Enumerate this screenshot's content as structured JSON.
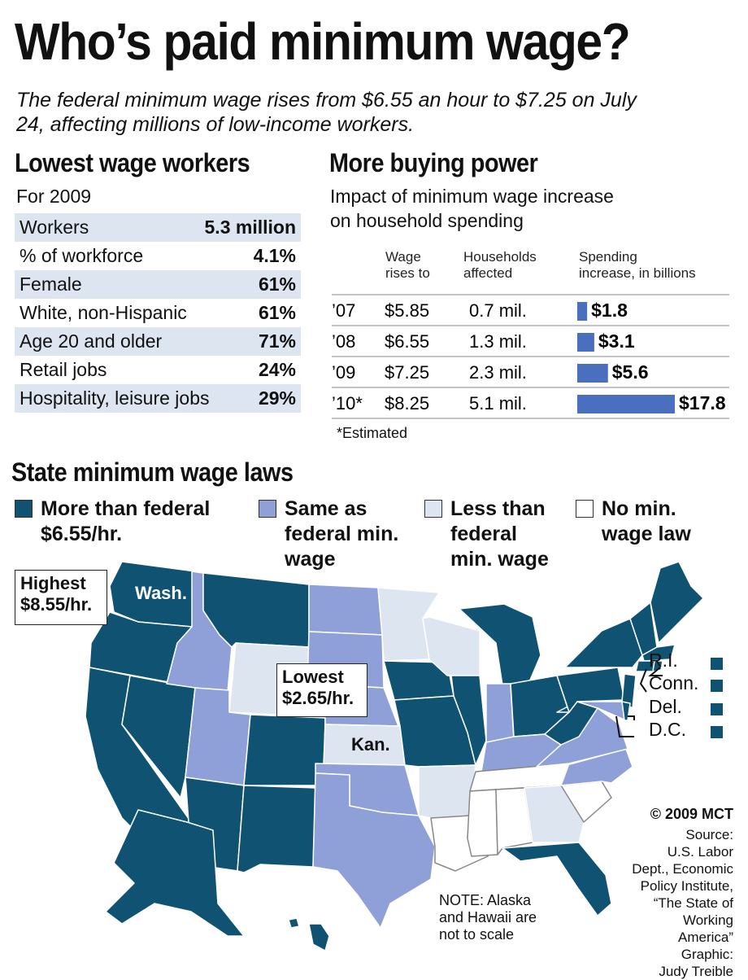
{
  "title": "Who’s paid minimum wage?",
  "subtitle": "The federal minimum wage rises from $6.55 an hour to $7.25 on July 24, affecting millions of low-income workers.",
  "lowest_wage": {
    "heading": "Lowest wage workers",
    "subheading": "For 2009",
    "rows": [
      {
        "label": "Workers",
        "value": "5.3 million"
      },
      {
        "label": "% of workforce",
        "value": "4.1%"
      },
      {
        "label": "Female",
        "value": "61%"
      },
      {
        "label": "White, non-Hispanic",
        "value": "61%"
      },
      {
        "label": "Age 20 and older",
        "value": "71%"
      },
      {
        "label": "Retail jobs",
        "value": "24%"
      },
      {
        "label": "Hospitality, leisure jobs",
        "value": "29%"
      }
    ]
  },
  "buying_power": {
    "heading": "More buying power",
    "subheading_line1": "Impact of minimum wage increase",
    "subheading_line2": "on household spending",
    "col_wage_1": "Wage",
    "col_wage_2": "rises to",
    "col_house_1": "Households",
    "col_house_2": "affected",
    "col_spend_1": "Spending",
    "col_spend_2": "increase, in billions",
    "footnote": "*Estimated"
  },
  "chart_data": {
    "type": "bar",
    "orientation": "horizontal",
    "categories": [
      "’07",
      "’08",
      "’09",
      "’10*"
    ],
    "wage": [
      "$5.85",
      "$6.55",
      "$7.25",
      "$8.25"
    ],
    "households": [
      "0.7 mil.",
      "1.3 mil.",
      "2.3 mil.",
      "5.1 mil."
    ],
    "values": [
      1.8,
      3.1,
      5.6,
      17.8
    ],
    "value_labels": [
      "$1.8",
      "$3.1",
      "$5.6",
      "$17.8"
    ],
    "xlim": [
      0,
      17.8
    ],
    "bar_color": "#4a6fbf"
  },
  "map": {
    "heading": "State minimum wage laws",
    "legend": [
      {
        "line1": "More than federal",
        "line2": "$6.55/hr.",
        "line3": "",
        "color": "#0f5272"
      },
      {
        "line1": "Same as",
        "line2": "federal min.",
        "line3": "wage",
        "color": "#8fa0d8"
      },
      {
        "line1": "Less than",
        "line2": "federal",
        "line3": "min. wage",
        "color": "#dde5f1"
      },
      {
        "line1": "No min.",
        "line2": "wage law",
        "line3": "",
        "color": "#ffffff"
      }
    ],
    "highest_1": "Highest",
    "highest_2": "$8.55/hr.",
    "highest_state": "Wash.",
    "lowest_1": "Lowest",
    "lowest_2": "$2.65/hr.",
    "lowest_state": "Kan.",
    "small_states": [
      "R.I.",
      "Conn.",
      "Del.",
      "D.C."
    ],
    "note_1": "NOTE: Alaska",
    "note_2": "and Hawaii are",
    "note_3": "not to scale"
  },
  "credits": {
    "copyright": "© 2009 MCT",
    "source_lines": [
      "Source:",
      "U.S. Labor",
      "Dept., Economic",
      "Policy Institute,",
      "“The State of",
      "Working",
      "America”",
      "Graphic:",
      "Judy Treible"
    ]
  }
}
